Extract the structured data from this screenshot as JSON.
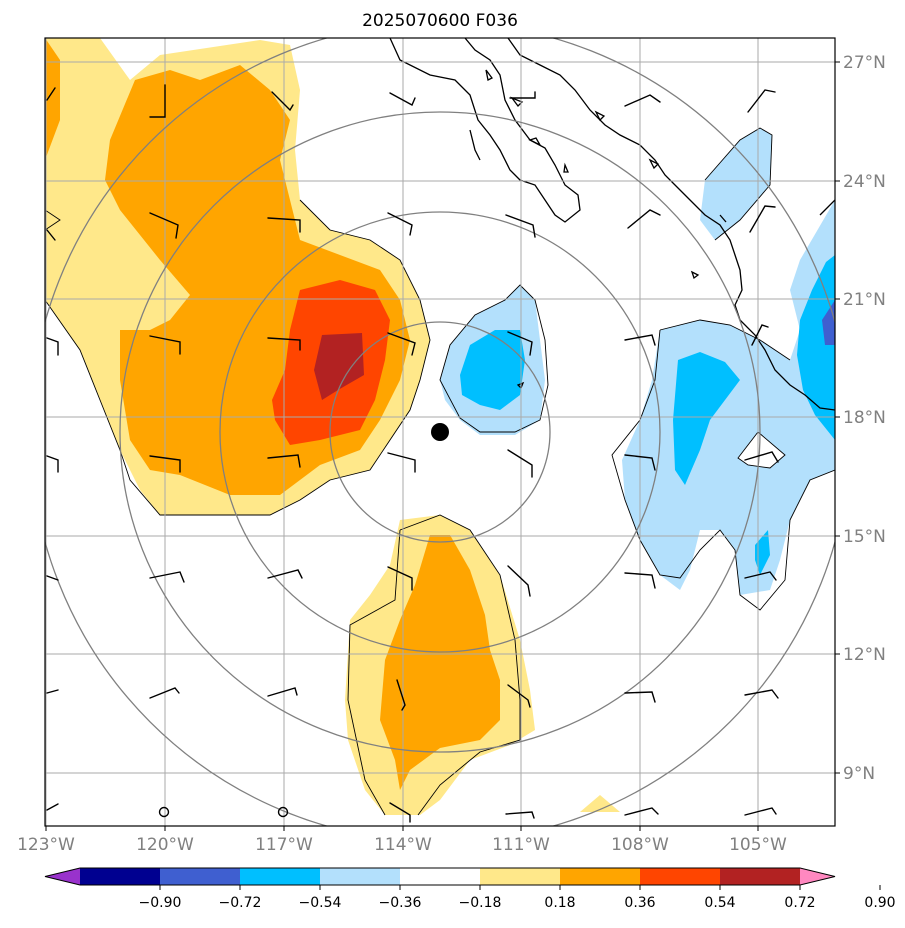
{
  "title": "2025070600 F036",
  "map": {
    "lon_labels": [
      "123°W",
      "120°W",
      "117°W",
      "114°W",
      "111°W",
      "108°W",
      "105°W"
    ],
    "lat_labels": [
      "27°N",
      "24°N",
      "21°N",
      "18°N",
      "15°N",
      "12°N",
      "9°N"
    ],
    "storm_center_marker": "filled-black-circle",
    "contour_fields": {
      "positive_colors": [
        "#ffe88a",
        "#ffa500",
        "#ff4500",
        "#b22222",
        "#ff88c0"
      ],
      "negative_colors": [
        "#b3e0fc",
        "#00bfff",
        "#3f5fd0",
        "#000090",
        "#9932cc"
      ]
    }
  },
  "colorbar": {
    "tick_labels": [
      "−0.90",
      "−0.72",
      "−0.54",
      "−0.36",
      "−0.18",
      "0.18",
      "0.36",
      "0.54",
      "0.72",
      "0.90"
    ],
    "colors": [
      "#9932cc",
      "#000090",
      "#3f5fd0",
      "#00bfff",
      "#b3e0fc",
      "#ffffff",
      "#ffe88a",
      "#ffa500",
      "#ff4500",
      "#b22222",
      "#ff88c0"
    ]
  }
}
